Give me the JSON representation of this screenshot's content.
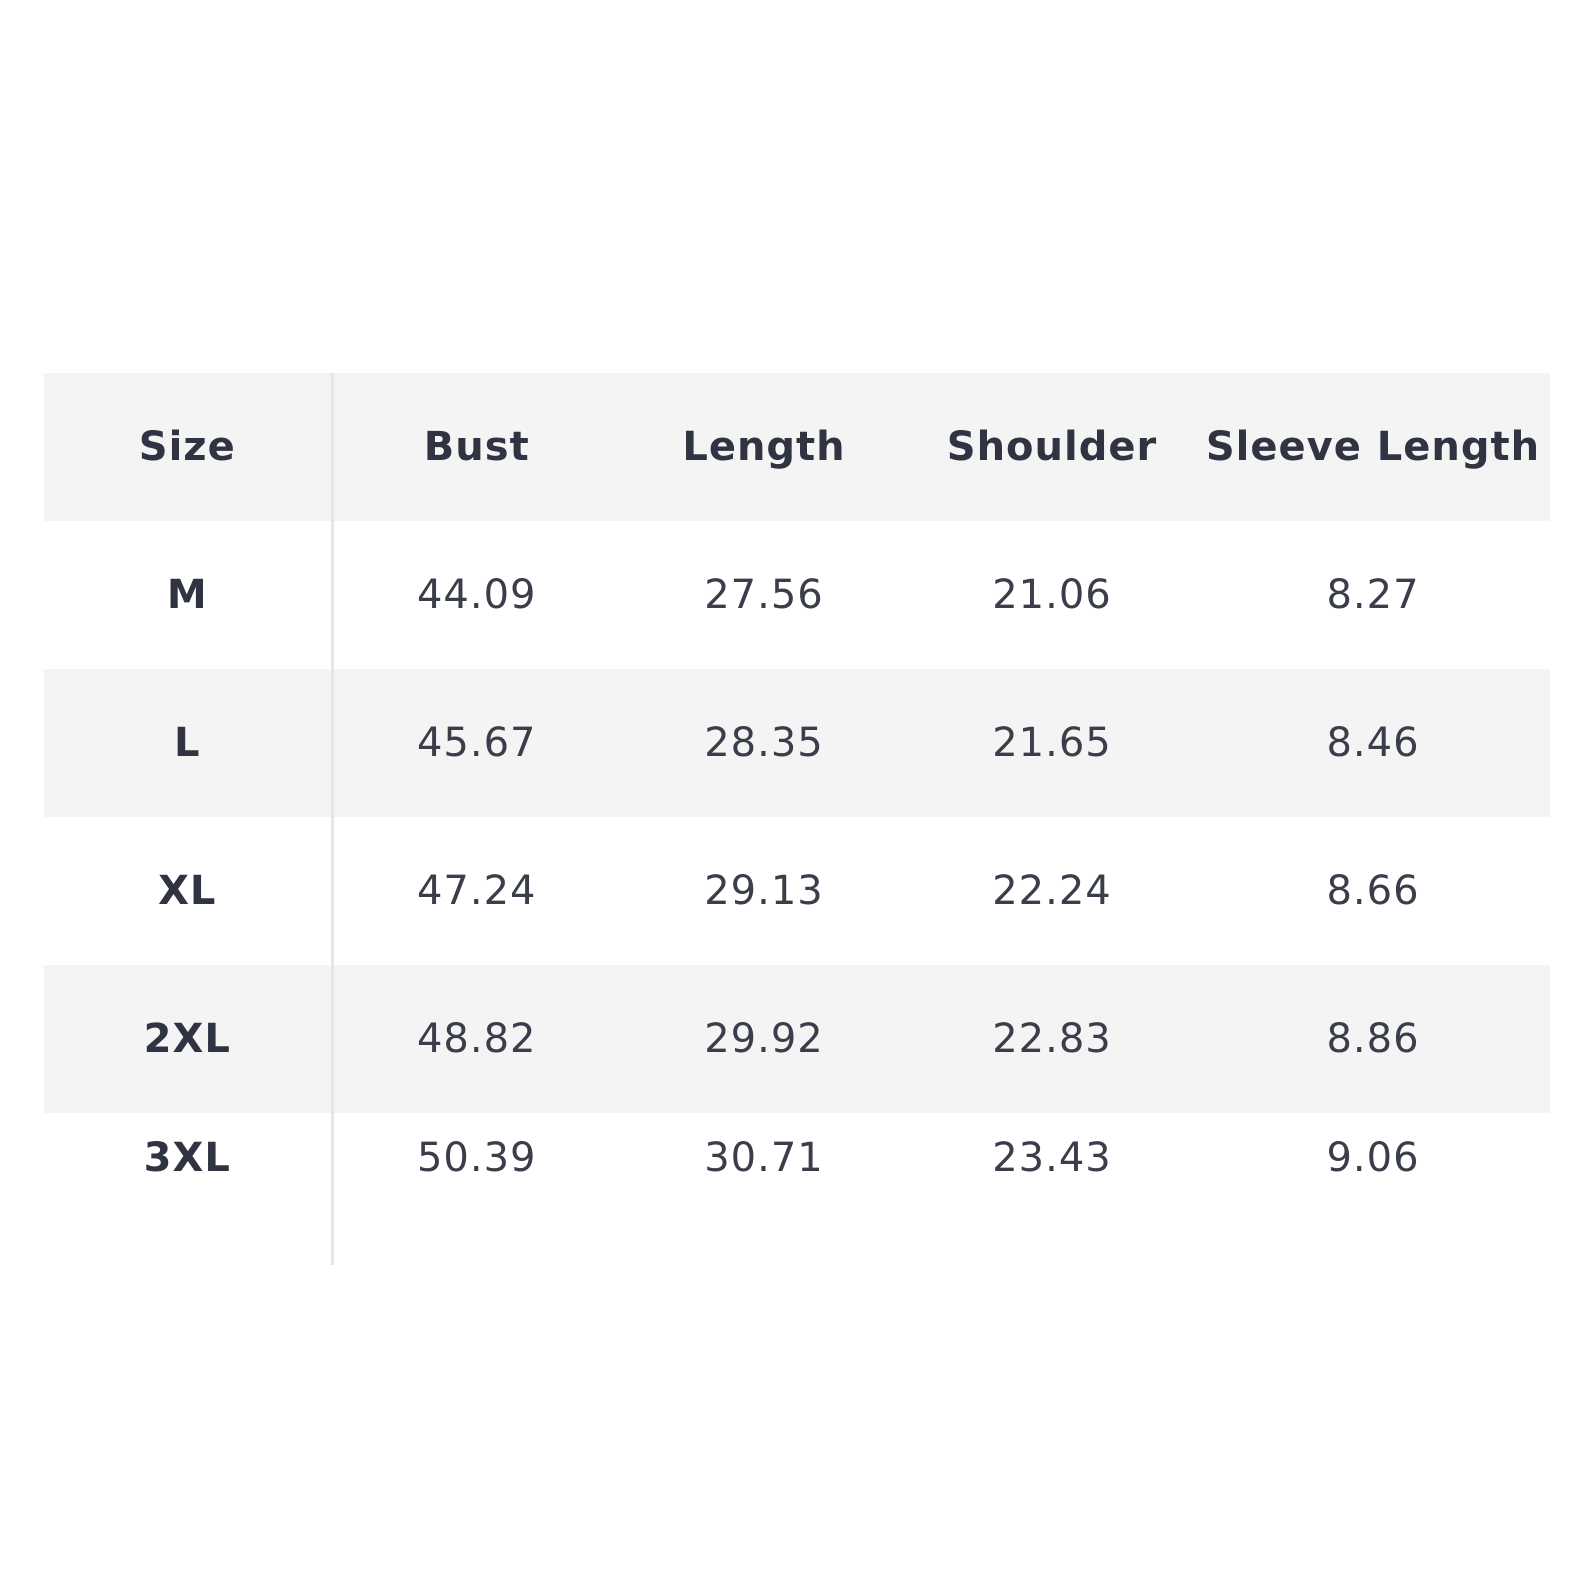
{
  "table": {
    "headers": [
      "Size",
      "Bust",
      "Length",
      "Shoulder",
      "Sleeve Length"
    ],
    "rows": [
      [
        "M",
        "44.09",
        "27.56",
        "21.06",
        "8.27"
      ],
      [
        "L",
        "45.67",
        "28.35",
        "21.65",
        "8.46"
      ],
      [
        "XL",
        "47.24",
        "29.13",
        "22.24",
        "8.66"
      ],
      [
        "2XL",
        "48.82",
        "29.92",
        "22.83",
        "8.86"
      ],
      [
        "3XL",
        "50.39",
        "30.71",
        "23.43",
        "9.06"
      ]
    ]
  },
  "colors": {
    "text": "#2f3342",
    "stripe": "#f4f4f4",
    "divider": "#e6e6e6",
    "background": "#ffffff"
  }
}
